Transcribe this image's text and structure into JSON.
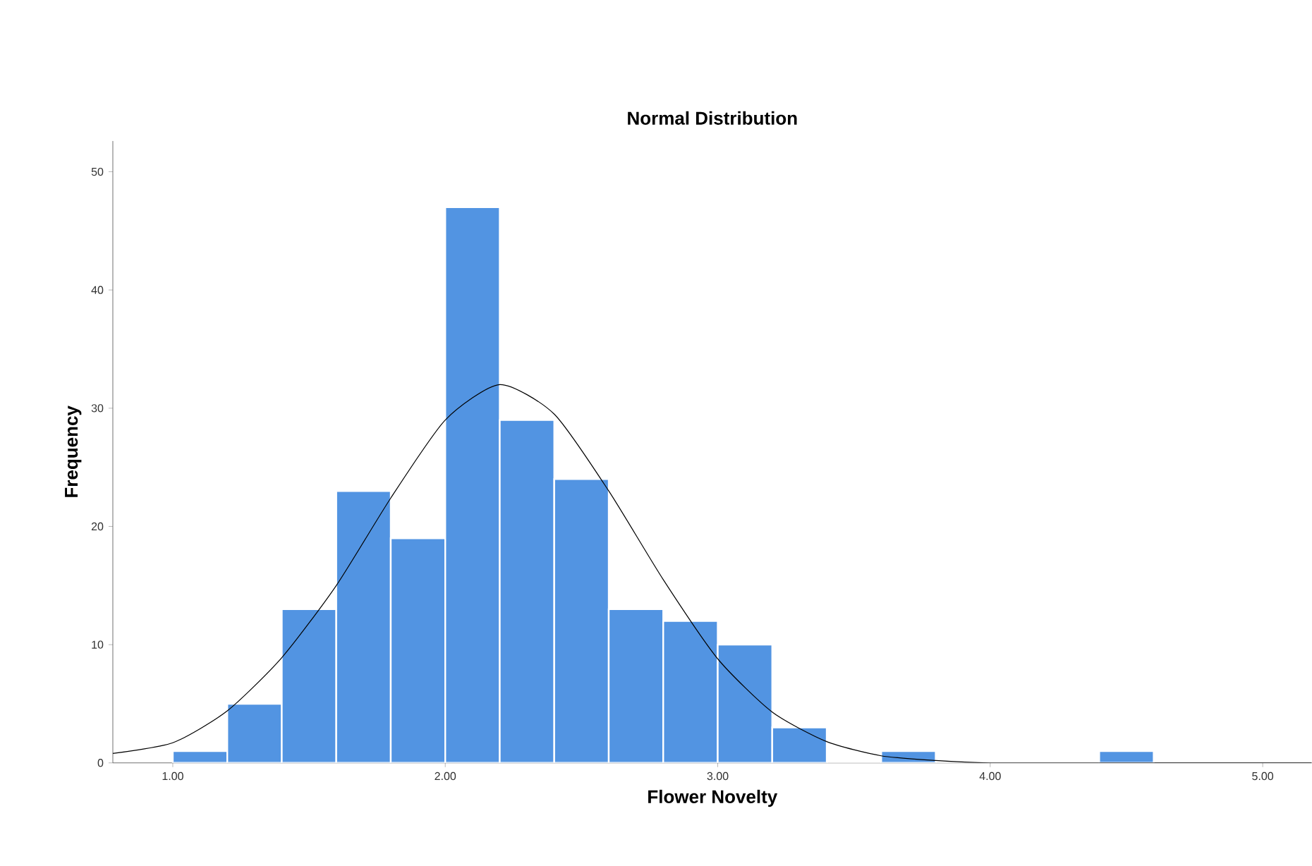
{
  "chart_data": {
    "type": "histogram",
    "title": "Normal Distribution",
    "xlabel": "Flower Novelty",
    "ylabel": "Frequency",
    "bins": [
      1.0,
      1.2,
      1.4,
      1.6,
      1.8,
      2.0,
      2.2,
      2.4,
      2.6,
      2.8,
      3.0,
      3.2,
      3.4,
      3.6,
      3.8,
      4.0,
      4.2,
      4.4,
      4.6
    ],
    "values": [
      1,
      5,
      13,
      23,
      19,
      47,
      29,
      24,
      13,
      12,
      10,
      3,
      0,
      1,
      0,
      0,
      0,
      1
    ],
    "color": "#5294e2",
    "series": [
      {
        "type": "line",
        "color": "#000000",
        "x": [
          0.78,
          1.0,
          1.2,
          1.4,
          1.6,
          1.8,
          2.0,
          2.2,
          2.4,
          2.6,
          2.8,
          3.0,
          3.2,
          3.4,
          3.6,
          3.8,
          4.0,
          4.4,
          5.18
        ],
        "values": [
          0.8,
          1.7,
          4.4,
          8.9,
          15,
          22.4,
          29,
          32,
          29.5,
          23,
          15.5,
          8.8,
          4.3,
          1.8,
          0.6,
          0.2,
          0,
          0,
          0
        ]
      }
    ],
    "xlim": [
      0.78,
      5.18
    ],
    "ylim": [
      0,
      52.6
    ],
    "xticks": [
      {
        "value": 1,
        "label": "1.00"
      },
      {
        "value": 2,
        "label": "2.00"
      },
      {
        "value": 3,
        "label": "3.00"
      },
      {
        "value": 4,
        "label": "4.00"
      },
      {
        "value": 5,
        "label": "5.00"
      }
    ],
    "yticks": [
      0,
      10,
      20,
      30,
      40,
      50
    ],
    "grid": false
  }
}
